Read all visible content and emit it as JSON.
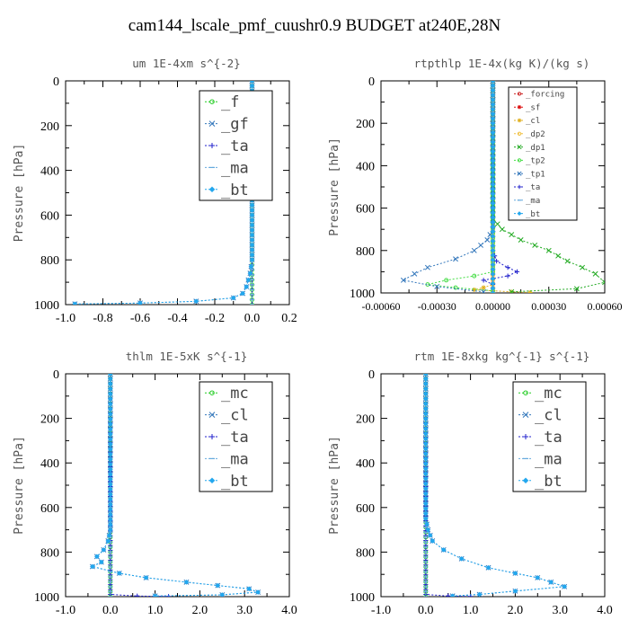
{
  "title": "cam144_lscale_pmf_cuushr0.9  BUDGET at240E,28N",
  "chart_data": [
    {
      "type": "line",
      "title": "um  1E-4xm s^{-2}",
      "ylabel": "Pressure [hPa]",
      "xlim": [
        -1.0,
        0.2
      ],
      "ylim": [
        1000,
        0
      ],
      "xticks": [
        "-1.0",
        "-0.8",
        "-0.6",
        "-0.4",
        "-0.2",
        "0.0",
        "0.2"
      ],
      "xtick_values": [
        -1.0,
        -0.8,
        -0.6,
        -0.4,
        -0.2,
        0.0,
        0.2
      ],
      "yticks": [
        "0",
        "200",
        "400",
        "600",
        "800",
        "1000"
      ],
      "ytick_values": [
        0,
        200,
        400,
        600,
        800,
        1000
      ],
      "legend": [
        "_f",
        "_gf",
        "_ta",
        "_ma",
        "_bt"
      ],
      "legend_size": "large",
      "series": [
        {
          "name": "_f",
          "color": "#22cc22",
          "marker": "circle",
          "points": [
            [
              0,
              0
            ],
            [
              0,
              1000
            ]
          ]
        },
        {
          "name": "_gf",
          "color": "#3377bb",
          "marker": "x",
          "points": [
            [
              0,
              0
            ],
            [
              0,
              800
            ],
            [
              -0.005,
              830
            ],
            [
              -0.01,
              860
            ],
            [
              -0.02,
              890
            ],
            [
              -0.03,
              920
            ],
            [
              -0.05,
              950
            ],
            [
              -0.1,
              970
            ],
            [
              -0.3,
              985
            ],
            [
              -0.6,
              993
            ],
            [
              -0.95,
              997
            ]
          ]
        },
        {
          "name": "_ta",
          "color": "#2222cc",
          "marker": "plus",
          "points": [
            [
              0,
              0
            ],
            [
              0,
              1000
            ]
          ]
        },
        {
          "name": "_ma",
          "color": "#66aadd",
          "marker": "dash",
          "points": [
            [
              0,
              0
            ],
            [
              0,
              1000
            ]
          ]
        },
        {
          "name": "_bt",
          "color": "#22a7ee",
          "marker": "diamond",
          "points": [
            [
              0,
              0
            ],
            [
              0,
              800
            ],
            [
              -0.005,
              830
            ],
            [
              -0.01,
              860
            ],
            [
              -0.02,
              890
            ],
            [
              -0.03,
              920
            ],
            [
              -0.05,
              950
            ],
            [
              -0.1,
              970
            ],
            [
              -0.3,
              985
            ],
            [
              -0.6,
              993
            ],
            [
              -0.95,
              997
            ]
          ]
        }
      ]
    },
    {
      "type": "line",
      "title": "rtpthlp  1E-4x(kg K)/(kg s)",
      "ylabel": "Pressure [hPa]",
      "xlim": [
        -0.0006,
        0.0006
      ],
      "ylim": [
        1000,
        0
      ],
      "xticks": [
        "-0.00060",
        "-0.00030",
        "0.00000",
        "0.00030",
        "0.00060"
      ],
      "xtick_values": [
        -0.0006,
        -0.0003,
        0.0,
        0.0003,
        0.0006
      ],
      "yticks": [
        "0",
        "200",
        "400",
        "600",
        "800",
        "1000"
      ],
      "ytick_values": [
        0,
        200,
        400,
        600,
        800,
        1000
      ],
      "legend": [
        "_forcing",
        "_sf",
        "_cl",
        "_dp2",
        "_dp1",
        "_tp2",
        "_tp1",
        "_ta",
        "_ma",
        "_bt"
      ],
      "legend_size": "small",
      "series": [
        {
          "name": "_forcing",
          "color": "#cc2222",
          "marker": "circle",
          "points": [
            [
              0,
              0
            ],
            [
              0,
              1000
            ]
          ]
        },
        {
          "name": "_sf",
          "color": "#dd1111",
          "marker": "star",
          "points": [
            [
              0,
              0
            ],
            [
              0,
              1000
            ]
          ]
        },
        {
          "name": "_cl",
          "color": "#e0b020",
          "marker": "star",
          "points": [
            [
              0,
              0
            ],
            [
              0,
              960
            ],
            [
              -5e-05,
              975
            ],
            [
              -0.0001,
              985
            ],
            [
              0,
              990
            ],
            [
              0.0001,
              995
            ],
            [
              0.0002,
              998
            ]
          ]
        },
        {
          "name": "_dp2",
          "color": "#f0c040",
          "marker": "circle",
          "points": [
            [
              0,
              0
            ],
            [
              0,
              1000
            ]
          ]
        },
        {
          "name": "_dp1",
          "color": "#22aa22",
          "marker": "x",
          "points": [
            [
              0,
              0
            ],
            [
              0,
              650
            ],
            [
              5e-05,
              700
            ],
            [
              0.00015,
              750
            ],
            [
              0.0003,
              800
            ],
            [
              0.0004,
              850
            ],
            [
              0.00048,
              880
            ],
            [
              0.00055,
              910
            ],
            [
              0.0006,
              950
            ],
            [
              0.00045,
              980
            ],
            [
              0.0001,
              995
            ]
          ]
        },
        {
          "name": "_tp2",
          "color": "#44dd44",
          "marker": "circle",
          "points": [
            [
              0,
              0
            ],
            [
              0,
              900
            ],
            [
              -0.0001,
              920
            ],
            [
              -0.00025,
              940
            ],
            [
              -0.00035,
              960
            ],
            [
              -0.0002,
              975
            ],
            [
              0,
              990
            ]
          ]
        },
        {
          "name": "_tp1",
          "color": "#3377bb",
          "marker": "x",
          "points": [
            [
              0,
              0
            ],
            [
              0,
              700
            ],
            [
              -3e-05,
              750
            ],
            [
              -0.0001,
              800
            ],
            [
              -0.0002,
              840
            ],
            [
              -0.00035,
              880
            ],
            [
              -0.00042,
              910
            ],
            [
              -0.00048,
              940
            ],
            [
              -0.0003,
              970
            ],
            [
              -5e-05,
              995
            ]
          ]
        },
        {
          "name": "_ta",
          "color": "#2222cc",
          "marker": "plus",
          "points": [
            [
              0,
              0
            ],
            [
              0,
              800
            ],
            [
              2e-05,
              850
            ],
            [
              8e-05,
              880
            ],
            [
              0.00013,
              900
            ],
            [
              8e-05,
              920
            ],
            [
              -5e-05,
              940
            ],
            [
              0,
              960
            ]
          ]
        },
        {
          "name": "_ma",
          "color": "#66aadd",
          "marker": "dash",
          "points": [
            [
              0,
              0
            ],
            [
              0,
              1000
            ]
          ]
        },
        {
          "name": "_bt",
          "color": "#22a7ee",
          "marker": "diamond",
          "points": [
            [
              0,
              0
            ],
            [
              0,
              1000
            ]
          ]
        }
      ]
    },
    {
      "type": "line",
      "title": "thlm  1E-5xK s^{-1}",
      "ylabel": "Pressure [hPa]",
      "xlim": [
        -1.0,
        4.0
      ],
      "ylim": [
        1000,
        0
      ],
      "xticks": [
        "-1.0",
        "0.0",
        "1.0",
        "2.0",
        "3.0",
        "4.0"
      ],
      "xtick_values": [
        -1.0,
        0.0,
        1.0,
        2.0,
        3.0,
        4.0
      ],
      "yticks": [
        "0",
        "200",
        "400",
        "600",
        "800",
        "1000"
      ],
      "ytick_values": [
        0,
        200,
        400,
        600,
        800,
        1000
      ],
      "legend": [
        "_mc",
        "_cl",
        "_ta",
        "_ma",
        "_bt"
      ],
      "legend_size": "large",
      "series": [
        {
          "name": "_mc",
          "color": "#22cc22",
          "marker": "circle",
          "points": [
            [
              0,
              0
            ],
            [
              0,
              1000
            ]
          ]
        },
        {
          "name": "_cl",
          "color": "#3377bb",
          "marker": "x",
          "points": [
            [
              0,
              0
            ],
            [
              0,
              700
            ],
            [
              -0.05,
              750
            ],
            [
              -0.15,
              790
            ],
            [
              -0.3,
              820
            ],
            [
              -0.2,
              845
            ],
            [
              -0.4,
              865
            ],
            [
              0.2,
              895
            ],
            [
              0.8,
              915
            ],
            [
              1.7,
              935
            ],
            [
              2.4,
              950
            ],
            [
              3.1,
              965
            ],
            [
              3.3,
              980
            ],
            [
              2.5,
              992
            ],
            [
              1.0,
              997
            ]
          ]
        },
        {
          "name": "_ta",
          "color": "#2222cc",
          "marker": "plus",
          "points": [
            [
              0,
              0
            ],
            [
              0,
              990
            ],
            [
              0.6,
              997
            ],
            [
              1.3,
              999
            ]
          ]
        },
        {
          "name": "_ma",
          "color": "#66aadd",
          "marker": "dash",
          "points": [
            [
              0,
              0
            ],
            [
              0,
              1000
            ]
          ]
        },
        {
          "name": "_bt",
          "color": "#22a7ee",
          "marker": "diamond",
          "points": [
            [
              0,
              0
            ],
            [
              0,
              700
            ],
            [
              -0.05,
              750
            ],
            [
              -0.15,
              790
            ],
            [
              -0.3,
              820
            ],
            [
              -0.2,
              845
            ],
            [
              -0.4,
              865
            ],
            [
              0.2,
              895
            ],
            [
              0.8,
              915
            ],
            [
              1.7,
              935
            ],
            [
              2.4,
              950
            ],
            [
              3.1,
              965
            ],
            [
              3.3,
              980
            ],
            [
              2.5,
              992
            ],
            [
              1.0,
              997
            ]
          ]
        }
      ]
    },
    {
      "type": "line",
      "title": "rtm  1E-8xkg kg^{-1} s^{-1}",
      "ylabel": "Pressure [hPa]",
      "xlim": [
        -1.0,
        4.0
      ],
      "ylim": [
        1000,
        0
      ],
      "xticks": [
        "-1.0",
        "0.0",
        "1.0",
        "2.0",
        "3.0",
        "4.0"
      ],
      "xtick_values": [
        -1.0,
        0.0,
        1.0,
        2.0,
        3.0,
        4.0
      ],
      "yticks": [
        "0",
        "200",
        "400",
        "600",
        "800",
        "1000"
      ],
      "ytick_values": [
        0,
        200,
        400,
        600,
        800,
        1000
      ],
      "legend": [
        "_mc",
        "_cl",
        "_ta",
        "_ma",
        "_bt"
      ],
      "legend_size": "large",
      "series": [
        {
          "name": "_mc",
          "color": "#22cc22",
          "marker": "circle",
          "points": [
            [
              0,
              0
            ],
            [
              0,
              1000
            ]
          ]
        },
        {
          "name": "_cl",
          "color": "#3377bb",
          "marker": "x",
          "points": [
            [
              0,
              0
            ],
            [
              0,
              650
            ],
            [
              0.05,
              700
            ],
            [
              0.15,
              750
            ],
            [
              0.4,
              790
            ],
            [
              0.8,
              830
            ],
            [
              1.4,
              870
            ],
            [
              2.0,
              895
            ],
            [
              2.5,
              915
            ],
            [
              2.8,
              935
            ],
            [
              3.1,
              955
            ],
            [
              2.0,
              975
            ],
            [
              1.2,
              990
            ],
            [
              0.6,
              997
            ]
          ]
        },
        {
          "name": "_ta",
          "color": "#2222cc",
          "marker": "plus",
          "points": [
            [
              0,
              0
            ],
            [
              0,
              990
            ],
            [
              0.5,
              997
            ],
            [
              1.0,
              999
            ]
          ]
        },
        {
          "name": "_ma",
          "color": "#66aadd",
          "marker": "dash",
          "points": [
            [
              0,
              0
            ],
            [
              0,
              1000
            ]
          ]
        },
        {
          "name": "_bt",
          "color": "#22a7ee",
          "marker": "diamond",
          "points": [
            [
              0,
              0
            ],
            [
              0,
              650
            ],
            [
              0.05,
              700
            ],
            [
              0.15,
              750
            ],
            [
              0.4,
              790
            ],
            [
              0.8,
              830
            ],
            [
              1.4,
              870
            ],
            [
              2.0,
              895
            ],
            [
              2.5,
              915
            ],
            [
              2.8,
              935
            ],
            [
              3.1,
              955
            ],
            [
              2.0,
              975
            ],
            [
              1.2,
              990
            ],
            [
              0.6,
              997
            ]
          ]
        }
      ]
    }
  ]
}
